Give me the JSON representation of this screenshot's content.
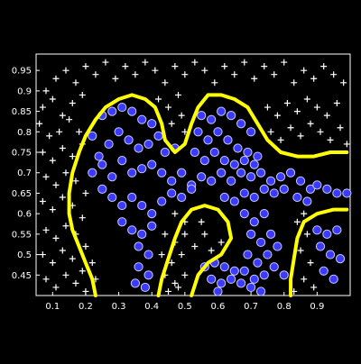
{
  "chart_data": {
    "type": "scatter",
    "title": "",
    "xlabel": "",
    "ylabel": "",
    "xlim": [
      0.05,
      1.0
    ],
    "ylim": [
      0.4,
      0.99
    ],
    "x_ticks": [
      "0.1",
      "0.2",
      "0.3",
      "0.4",
      "0.5",
      "0.6",
      "0.7",
      "0.8",
      "0.9"
    ],
    "y_ticks": [
      "0.45",
      "0.5",
      "0.55",
      "0.6",
      "0.65",
      "0.7",
      "0.75",
      "0.8",
      "0.85",
      "0.9",
      "0.95"
    ],
    "grid": false,
    "legend": "none",
    "colors": {
      "background": "#000000",
      "axes": "#ffffff",
      "positive_fill": "#3b3bff",
      "positive_edge": "#c8c8ff",
      "negative_marker": "#ffffff",
      "boundary": "#ffff00"
    },
    "series": [
      {
        "marker": "circle",
        "points": [
          [
            0.22,
            0.79
          ],
          [
            0.25,
            0.84
          ],
          [
            0.28,
            0.85
          ],
          [
            0.31,
            0.86
          ],
          [
            0.34,
            0.85
          ],
          [
            0.37,
            0.83
          ],
          [
            0.4,
            0.82
          ],
          [
            0.42,
            0.79
          ],
          [
            0.24,
            0.74
          ],
          [
            0.27,
            0.77
          ],
          [
            0.3,
            0.8
          ],
          [
            0.33,
            0.78
          ],
          [
            0.36,
            0.76
          ],
          [
            0.39,
            0.77
          ],
          [
            0.44,
            0.75
          ],
          [
            0.47,
            0.76
          ],
          [
            0.22,
            0.7
          ],
          [
            0.25,
            0.72
          ],
          [
            0.28,
            0.69
          ],
          [
            0.31,
            0.73
          ],
          [
            0.34,
            0.7
          ],
          [
            0.37,
            0.71
          ],
          [
            0.4,
            0.72
          ],
          [
            0.43,
            0.7
          ],
          [
            0.46,
            0.68
          ],
          [
            0.49,
            0.7
          ],
          [
            0.52,
            0.67
          ],
          [
            0.55,
            0.69
          ],
          [
            0.58,
            0.68
          ],
          [
            0.61,
            0.7
          ],
          [
            0.64,
            0.68
          ],
          [
            0.67,
            0.7
          ],
          [
            0.7,
            0.69
          ],
          [
            0.73,
            0.7
          ],
          [
            0.76,
            0.68
          ],
          [
            0.79,
            0.69
          ],
          [
            0.82,
            0.7
          ],
          [
            0.85,
            0.68
          ],
          [
            0.88,
            0.66
          ],
          [
            0.9,
            0.67
          ],
          [
            0.25,
            0.66
          ],
          [
            0.28,
            0.64
          ],
          [
            0.31,
            0.62
          ],
          [
            0.34,
            0.64
          ],
          [
            0.37,
            0.62
          ],
          [
            0.4,
            0.6
          ],
          [
            0.43,
            0.63
          ],
          [
            0.46,
            0.65
          ],
          [
            0.49,
            0.64
          ],
          [
            0.52,
            0.66
          ],
          [
            0.62,
            0.64
          ],
          [
            0.65,
            0.63
          ],
          [
            0.68,
            0.65
          ],
          [
            0.71,
            0.64
          ],
          [
            0.74,
            0.66
          ],
          [
            0.77,
            0.65
          ],
          [
            0.8,
            0.66
          ],
          [
            0.84,
            0.64
          ],
          [
            0.87,
            0.63
          ],
          [
            0.93,
            0.66
          ],
          [
            0.96,
            0.65
          ],
          [
            0.99,
            0.65
          ],
          [
            0.31,
            0.58
          ],
          [
            0.34,
            0.56
          ],
          [
            0.37,
            0.55
          ],
          [
            0.4,
            0.57
          ],
          [
            0.36,
            0.52
          ],
          [
            0.39,
            0.5
          ],
          [
            0.36,
            0.47
          ],
          [
            0.39,
            0.45
          ],
          [
            0.35,
            0.43
          ],
          [
            0.38,
            0.42
          ],
          [
            0.55,
            0.84
          ],
          [
            0.58,
            0.83
          ],
          [
            0.61,
            0.85
          ],
          [
            0.64,
            0.84
          ],
          [
            0.67,
            0.82
          ],
          [
            0.7,
            0.8
          ],
          [
            0.54,
            0.8
          ],
          [
            0.57,
            0.78
          ],
          [
            0.6,
            0.8
          ],
          [
            0.63,
            0.78
          ],
          [
            0.66,
            0.76
          ],
          [
            0.69,
            0.75
          ],
          [
            0.72,
            0.74
          ],
          [
            0.53,
            0.75
          ],
          [
            0.56,
            0.73
          ],
          [
            0.59,
            0.75
          ],
          [
            0.62,
            0.73
          ],
          [
            0.65,
            0.72
          ],
          [
            0.68,
            0.73
          ],
          [
            0.71,
            0.72
          ],
          [
            0.68,
            0.6
          ],
          [
            0.71,
            0.58
          ],
          [
            0.74,
            0.6
          ],
          [
            0.7,
            0.55
          ],
          [
            0.73,
            0.53
          ],
          [
            0.76,
            0.55
          ],
          [
            0.69,
            0.5
          ],
          [
            0.72,
            0.48
          ],
          [
            0.75,
            0.5
          ],
          [
            0.78,
            0.52
          ],
          [
            0.68,
            0.46
          ],
          [
            0.71,
            0.44
          ],
          [
            0.74,
            0.45
          ],
          [
            0.77,
            0.47
          ],
          [
            0.8,
            0.45
          ],
          [
            0.7,
            0.42
          ],
          [
            0.73,
            0.41
          ],
          [
            0.56,
            0.47
          ],
          [
            0.59,
            0.48
          ],
          [
            0.62,
            0.47
          ],
          [
            0.65,
            0.46
          ],
          [
            0.58,
            0.44
          ],
          [
            0.61,
            0.43
          ],
          [
            0.64,
            0.44
          ],
          [
            0.67,
            0.43
          ],
          [
            0.6,
            0.41
          ],
          [
            0.9,
            0.56
          ],
          [
            0.93,
            0.55
          ],
          [
            0.96,
            0.56
          ],
          [
            0.91,
            0.52
          ],
          [
            0.94,
            0.5
          ],
          [
            0.97,
            0.49
          ],
          [
            0.92,
            0.46
          ],
          [
            0.95,
            0.44
          ]
        ]
      },
      {
        "marker": "plus",
        "points": [
          [
            0.08,
            0.9
          ],
          [
            0.11,
            0.93
          ],
          [
            0.14,
            0.95
          ],
          [
            0.17,
            0.92
          ],
          [
            0.2,
            0.96
          ],
          [
            0.23,
            0.94
          ],
          [
            0.26,
            0.97
          ],
          [
            0.29,
            0.93
          ],
          [
            0.32,
            0.96
          ],
          [
            0.35,
            0.94
          ],
          [
            0.38,
            0.97
          ],
          [
            0.41,
            0.95
          ],
          [
            0.44,
            0.92
          ],
          [
            0.47,
            0.96
          ],
          [
            0.5,
            0.94
          ],
          [
            0.53,
            0.97
          ],
          [
            0.56,
            0.95
          ],
          [
            0.59,
            0.92
          ],
          [
            0.62,
            0.96
          ],
          [
            0.65,
            0.94
          ],
          [
            0.68,
            0.97
          ],
          [
            0.71,
            0.93
          ],
          [
            0.74,
            0.96
          ],
          [
            0.77,
            0.94
          ],
          [
            0.8,
            0.97
          ],
          [
            0.83,
            0.92
          ],
          [
            0.86,
            0.95
          ],
          [
            0.89,
            0.93
          ],
          [
            0.92,
            0.96
          ],
          [
            0.95,
            0.94
          ],
          [
            0.98,
            0.92
          ],
          [
            0.07,
            0.86
          ],
          [
            0.1,
            0.88
          ],
          [
            0.13,
            0.84
          ],
          [
            0.16,
            0.87
          ],
          [
            0.19,
            0.89
          ],
          [
            0.06,
            0.82
          ],
          [
            0.09,
            0.79
          ],
          [
            0.12,
            0.8
          ],
          [
            0.15,
            0.83
          ],
          [
            0.18,
            0.8
          ],
          [
            0.07,
            0.75
          ],
          [
            0.1,
            0.73
          ],
          [
            0.13,
            0.76
          ],
          [
            0.16,
            0.74
          ],
          [
            0.19,
            0.77
          ],
          [
            0.08,
            0.69
          ],
          [
            0.11,
            0.67
          ],
          [
            0.14,
            0.7
          ],
          [
            0.17,
            0.68
          ],
          [
            0.2,
            0.65
          ],
          [
            0.07,
            0.63
          ],
          [
            0.1,
            0.61
          ],
          [
            0.13,
            0.64
          ],
          [
            0.16,
            0.62
          ],
          [
            0.19,
            0.59
          ],
          [
            0.08,
            0.56
          ],
          [
            0.11,
            0.54
          ],
          [
            0.14,
            0.57
          ],
          [
            0.17,
            0.55
          ],
          [
            0.2,
            0.52
          ],
          [
            0.07,
            0.5
          ],
          [
            0.1,
            0.48
          ],
          [
            0.13,
            0.51
          ],
          [
            0.16,
            0.49
          ],
          [
            0.19,
            0.46
          ],
          [
            0.22,
            0.48
          ],
          [
            0.08,
            0.44
          ],
          [
            0.11,
            0.42
          ],
          [
            0.14,
            0.45
          ],
          [
            0.17,
            0.43
          ],
          [
            0.2,
            0.41
          ],
          [
            0.23,
            0.44
          ],
          [
            0.42,
            0.88
          ],
          [
            0.45,
            0.86
          ],
          [
            0.48,
            0.89
          ],
          [
            0.46,
            0.82
          ],
          [
            0.49,
            0.84
          ],
          [
            0.5,
            0.8
          ],
          [
            0.75,
            0.86
          ],
          [
            0.78,
            0.84
          ],
          [
            0.81,
            0.87
          ],
          [
            0.84,
            0.85
          ],
          [
            0.87,
            0.88
          ],
          [
            0.9,
            0.86
          ],
          [
            0.93,
            0.84
          ],
          [
            0.96,
            0.87
          ],
          [
            0.76,
            0.8
          ],
          [
            0.79,
            0.78
          ],
          [
            0.82,
            0.81
          ],
          [
            0.85,
            0.79
          ],
          [
            0.88,
            0.82
          ],
          [
            0.91,
            0.8
          ],
          [
            0.94,
            0.78
          ],
          [
            0.97,
            0.81
          ],
          [
            0.99,
            0.77
          ],
          [
            0.47,
            0.6
          ],
          [
            0.5,
            0.58
          ],
          [
            0.44,
            0.55
          ],
          [
            0.47,
            0.53
          ],
          [
            0.5,
            0.55
          ],
          [
            0.43,
            0.5
          ],
          [
            0.46,
            0.48
          ],
          [
            0.49,
            0.5
          ],
          [
            0.44,
            0.45
          ],
          [
            0.47,
            0.43
          ],
          [
            0.5,
            0.45
          ],
          [
            0.53,
            0.52
          ],
          [
            0.56,
            0.55
          ],
          [
            0.58,
            0.51
          ],
          [
            0.61,
            0.53
          ],
          [
            0.55,
            0.58
          ],
          [
            0.45,
            0.41
          ],
          [
            0.48,
            0.42
          ],
          [
            0.84,
            0.58
          ],
          [
            0.87,
            0.55
          ],
          [
            0.85,
            0.51
          ],
          [
            0.88,
            0.48
          ],
          [
            0.86,
            0.44
          ],
          [
            0.89,
            0.42
          ],
          [
            0.83,
            0.41
          ],
          [
            0.86,
            0.6
          ]
        ]
      }
    ],
    "decision_boundary": [
      [
        [
          0.23,
          0.4
        ],
        [
          0.22,
          0.44
        ],
        [
          0.2,
          0.48
        ],
        [
          0.18,
          0.52
        ],
        [
          0.16,
          0.56
        ],
        [
          0.15,
          0.6
        ],
        [
          0.15,
          0.65
        ],
        [
          0.16,
          0.7
        ],
        [
          0.18,
          0.75
        ],
        [
          0.2,
          0.79
        ],
        [
          0.23,
          0.83
        ],
        [
          0.26,
          0.86
        ],
        [
          0.3,
          0.88
        ],
        [
          0.34,
          0.89
        ],
        [
          0.38,
          0.88
        ],
        [
          0.41,
          0.86
        ],
        [
          0.43,
          0.82
        ],
        [
          0.44,
          0.78
        ],
        [
          0.47,
          0.75
        ],
        [
          0.5,
          0.77
        ],
        [
          0.52,
          0.82
        ],
        [
          0.54,
          0.86
        ],
        [
          0.57,
          0.89
        ],
        [
          0.61,
          0.89
        ],
        [
          0.65,
          0.88
        ],
        [
          0.69,
          0.86
        ],
        [
          0.72,
          0.82
        ],
        [
          0.75,
          0.78
        ],
        [
          0.79,
          0.75
        ],
        [
          0.84,
          0.74
        ],
        [
          0.89,
          0.74
        ],
        [
          0.94,
          0.75
        ],
        [
          0.99,
          0.75
        ]
      ],
      [
        [
          0.42,
          0.4
        ],
        [
          0.43,
          0.44
        ],
        [
          0.45,
          0.49
        ],
        [
          0.47,
          0.54
        ],
        [
          0.49,
          0.58
        ],
        [
          0.52,
          0.61
        ],
        [
          0.56,
          0.62
        ],
        [
          0.6,
          0.61
        ],
        [
          0.63,
          0.58
        ],
        [
          0.64,
          0.54
        ],
        [
          0.61,
          0.5
        ],
        [
          0.57,
          0.48
        ],
        [
          0.54,
          0.45
        ],
        [
          0.52,
          0.4
        ]
      ],
      [
        [
          0.82,
          0.4
        ],
        [
          0.82,
          0.44
        ],
        [
          0.83,
          0.49
        ],
        [
          0.84,
          0.54
        ],
        [
          0.86,
          0.58
        ],
        [
          0.9,
          0.6
        ],
        [
          0.95,
          0.61
        ],
        [
          0.99,
          0.61
        ]
      ]
    ]
  }
}
